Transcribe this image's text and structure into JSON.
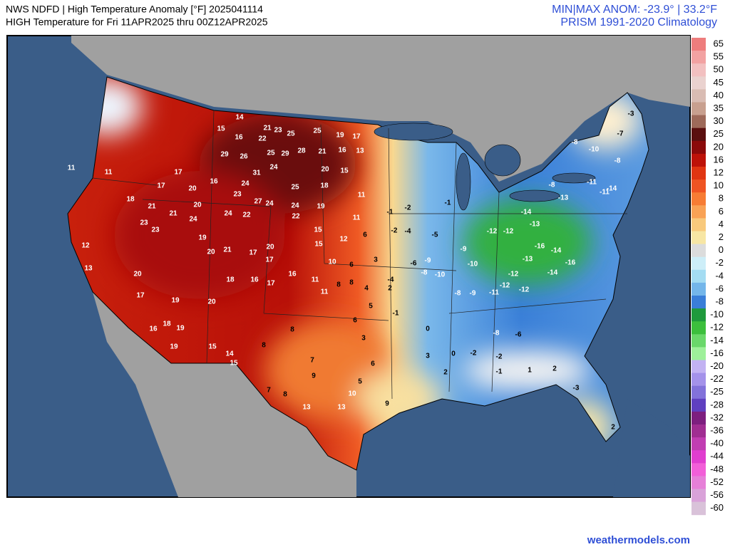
{
  "header": {
    "title_line1": "NWS NDFD | High Temperature Anomaly [°F] 2025041114",
    "title_line2": "HIGH Temperature for Fri 11APR2025 thru 00Z12APR2025",
    "anom": "MIN|MAX ANOM: -23.9° | 33.2°F",
    "climatology": "PRISM 1991-2020 Climatology"
  },
  "legend": {
    "labels": [
      65,
      55,
      50,
      45,
      40,
      35,
      30,
      25,
      20,
      16,
      12,
      10,
      8,
      6,
      4,
      2,
      0,
      -2,
      -4,
      -6,
      -8,
      -10,
      -12,
      -14,
      -16,
      -20,
      -22,
      -25,
      -28,
      -32,
      -36,
      -40,
      -44,
      -48,
      -52,
      -56,
      -60
    ],
    "colors": [
      "#ee7d7d",
      "#f2a2a2",
      "#f2c0c0",
      "#ead2cf",
      "#d9bcb3",
      "#c8a08f",
      "#9e6a5a",
      "#5a0f0f",
      "#8b0a0a",
      "#bd1208",
      "#e03512",
      "#ef5423",
      "#f77c34",
      "#f9a255",
      "#f8c97c",
      "#f7e6a4",
      "#dcdcdc",
      "#cdeef8",
      "#a4dcf2",
      "#74b6ea",
      "#3a7ed8",
      "#1f9a3c",
      "#3cbf3c",
      "#6ad86a",
      "#9ef09a",
      "#c2b2f2",
      "#a492ea",
      "#8272da",
      "#5f40c0",
      "#7d1f7f",
      "#a02e92",
      "#c13eb2",
      "#e03ecf",
      "#f25fd8",
      "#e680d8",
      "#d9a2d9",
      "#d9c2d9"
    ]
  },
  "map": {
    "station_values": [
      14,
      21,
      23,
      25,
      25,
      19,
      17,
      15,
      16,
      22,
      25,
      29,
      28,
      21,
      16,
      13,
      29,
      26,
      24,
      31,
      24,
      23,
      27,
      24,
      25,
      20,
      15,
      18,
      19,
      24,
      22,
      24,
      22,
      18,
      21,
      21,
      23,
      23,
      20,
      24,
      19,
      20,
      21,
      17,
      20,
      17,
      16,
      17,
      16,
      18,
      20,
      17,
      19,
      20,
      18,
      19,
      16,
      19,
      15,
      14,
      15,
      8,
      8,
      7,
      9,
      7,
      8,
      13,
      13,
      10,
      9,
      12,
      13,
      11,
      11,
      17,
      17,
      20,
      16,
      11,
      -1,
      -2,
      -2,
      -4,
      -5,
      -1,
      -9,
      -8,
      -10,
      -10,
      -8,
      -9,
      -11,
      -12,
      -12,
      -12,
      -13,
      -16,
      -14,
      -16,
      -14,
      -8,
      -6,
      -8,
      -13,
      -11,
      -11,
      -8,
      -7,
      -3,
      -14,
      -10,
      -8,
      -14,
      -13,
      -12,
      -12,
      -9,
      -4,
      -6,
      -1,
      0,
      0,
      -2,
      -2,
      1,
      2,
      -3,
      2,
      -1,
      3,
      2,
      6,
      5,
      5,
      3,
      6,
      8,
      8,
      11,
      11,
      10,
      6,
      3,
      6,
      11,
      12,
      15,
      15,
      4,
      2
    ]
  },
  "footer": "weathermodels.com"
}
